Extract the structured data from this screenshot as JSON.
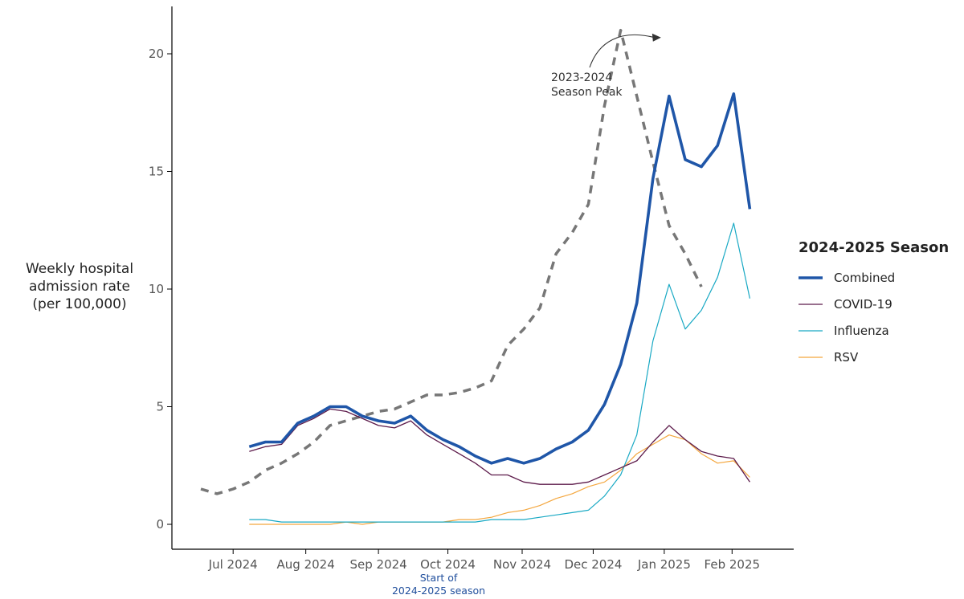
{
  "chart_data": {
    "type": "line",
    "ylabel_lines": [
      "Weekly hospital",
      "admission rate",
      "(per 100,000)"
    ],
    "ylim": [
      -1,
      22
    ],
    "yticks": [
      0,
      5,
      10,
      15,
      20
    ],
    "xlim": [
      0,
      43
    ],
    "x_tick_positions": [
      2,
      6.5,
      11,
      15.3,
      19.9,
      24.3,
      28.7,
      32.9
    ],
    "x_tick_labels": [
      "Jul 2024",
      "Aug 2024",
      "Sep 2024",
      "Oct 2024",
      "Nov 2024",
      "Dec 2024",
      "Jan 2025",
      "Feb 2025"
    ],
    "grid": false,
    "legend": {
      "title": "2024-2025 Season",
      "position": "right",
      "items": [
        "Combined",
        "COVID-19",
        "Influenza",
        "RSV"
      ]
    },
    "annotation": {
      "lines": [
        "2023-2024",
        "Season Peak"
      ],
      "x": 28.3,
      "y": 21.0
    },
    "season_start_note": {
      "lines": [
        "Start of",
        "2024-2025 season"
      ],
      "x": 15.3
    },
    "colors": {
      "combined": "#1f56a8",
      "covid": "#5c1a4a",
      "influenza": "#19a9c4",
      "rsv": "#f4a73f",
      "prior": "#777777",
      "axis": "#000000",
      "note": "#1f4e9c"
    },
    "series": [
      {
        "name": "Combined",
        "key": "combined",
        "x": [
          3,
          4,
          5,
          6,
          7,
          8,
          9,
          10,
          11,
          12,
          13,
          14,
          15,
          16,
          17,
          18,
          19,
          20,
          21,
          22,
          23,
          24,
          25,
          26,
          27,
          28,
          29,
          30,
          31,
          32,
          33,
          34
        ],
        "values": [
          3.3,
          3.5,
          3.5,
          4.3,
          4.6,
          5.0,
          5.0,
          4.6,
          4.4,
          4.3,
          4.6,
          4.0,
          3.6,
          3.3,
          2.9,
          2.6,
          2.8,
          2.6,
          2.8,
          3.2,
          3.5,
          4.0,
          5.1,
          6.8,
          9.4,
          14.7,
          18.2,
          15.5,
          15.2,
          16.1,
          18.3,
          13.4
        ]
      },
      {
        "name": "COVID-19",
        "key": "covid",
        "x": [
          3,
          4,
          5,
          6,
          7,
          8,
          9,
          10,
          11,
          12,
          13,
          14,
          15,
          16,
          17,
          18,
          19,
          20,
          21,
          22,
          23,
          24,
          25,
          26,
          27,
          28,
          29,
          30,
          31,
          32,
          33,
          34
        ],
        "values": [
          3.1,
          3.3,
          3.4,
          4.2,
          4.5,
          4.9,
          4.8,
          4.5,
          4.2,
          4.1,
          4.4,
          3.8,
          3.4,
          3.0,
          2.6,
          2.1,
          2.1,
          1.8,
          1.7,
          1.7,
          1.7,
          1.8,
          2.1,
          2.4,
          2.7,
          3.5,
          4.2,
          3.6,
          3.1,
          2.9,
          2.8,
          1.8
        ]
      },
      {
        "name": "Influenza",
        "key": "influenza",
        "x": [
          3,
          4,
          5,
          6,
          7,
          8,
          9,
          10,
          11,
          12,
          13,
          14,
          15,
          16,
          17,
          18,
          19,
          20,
          21,
          22,
          23,
          24,
          25,
          26,
          27,
          28,
          29,
          30,
          31,
          32,
          33,
          34
        ],
        "values": [
          0.2,
          0.2,
          0.1,
          0.1,
          0.1,
          0.1,
          0.1,
          0.1,
          0.1,
          0.1,
          0.1,
          0.1,
          0.1,
          0.1,
          0.1,
          0.2,
          0.2,
          0.2,
          0.3,
          0.4,
          0.5,
          0.6,
          1.2,
          2.1,
          3.8,
          7.8,
          10.2,
          8.3,
          9.1,
          10.5,
          12.8,
          9.6
        ]
      },
      {
        "name": "RSV",
        "key": "rsv",
        "x": [
          3,
          4,
          5,
          6,
          7,
          8,
          9,
          10,
          11,
          12,
          13,
          14,
          15,
          16,
          17,
          18,
          19,
          20,
          21,
          22,
          23,
          24,
          25,
          26,
          27,
          28,
          29,
          30,
          31,
          32,
          33,
          34
        ],
        "values": [
          0.0,
          0.0,
          0.0,
          0.0,
          0.0,
          0.0,
          0.1,
          0.0,
          0.1,
          0.1,
          0.1,
          0.1,
          0.1,
          0.2,
          0.2,
          0.3,
          0.5,
          0.6,
          0.8,
          1.1,
          1.3,
          1.6,
          1.8,
          2.3,
          3.0,
          3.4,
          3.8,
          3.6,
          3.0,
          2.6,
          2.7,
          2.0
        ]
      },
      {
        "key": "prior",
        "x": [
          0,
          1,
          2,
          3,
          4,
          5,
          6,
          7,
          8,
          9,
          10,
          11,
          12,
          13,
          14,
          15,
          16,
          17,
          18,
          19,
          20,
          21,
          22,
          23,
          24,
          25,
          26,
          27,
          28,
          29,
          30,
          31,
          32,
          33
        ],
        "values": [
          1.5,
          1.3,
          1.5,
          1.8,
          2.3,
          2.6,
          3.0,
          3.5,
          4.2,
          4.4,
          4.6,
          4.8,
          4.9,
          5.2,
          5.5,
          5.5,
          5.6,
          5.8,
          6.1,
          7.6,
          8.3,
          9.2,
          11.5,
          12.4,
          13.6,
          17.8,
          21.0,
          18.2,
          15.4,
          12.7,
          11.5,
          10.1,
          null,
          null
        ]
      }
    ]
  }
}
